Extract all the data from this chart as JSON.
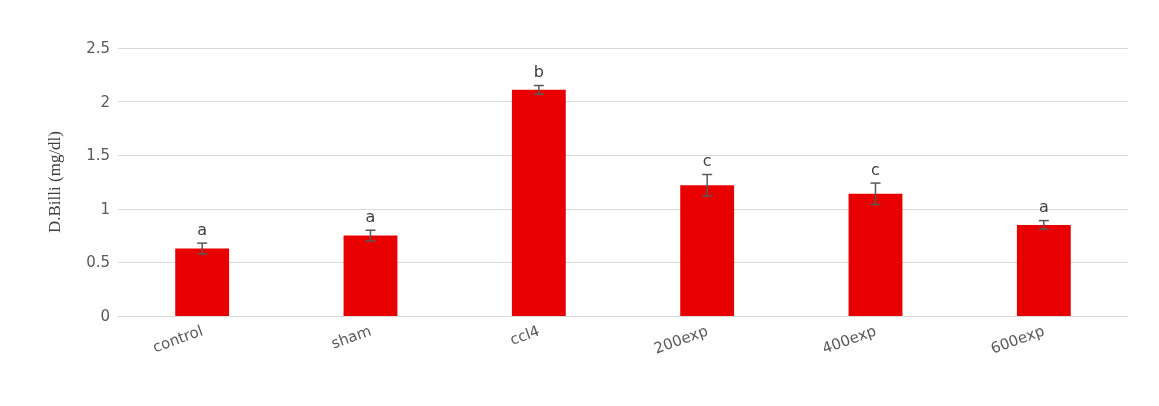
{
  "chart_data": {
    "type": "bar",
    "ylabel": "D.Billi (mg/dl)",
    "categories": [
      "control",
      "sham",
      "ccl4",
      "200exp",
      "400exp",
      "600exp"
    ],
    "values": [
      0.63,
      0.75,
      2.11,
      1.22,
      1.14,
      0.85
    ],
    "errors": [
      0.05,
      0.05,
      0.04,
      0.1,
      0.1,
      0.04
    ],
    "color": "#e80000",
    "ylim": [
      0,
      2.5
    ],
    "yticks": [
      0,
      0.5,
      1,
      1.5,
      2,
      2.5
    ],
    "grid": "y",
    "annotations": [
      {
        "text": "a",
        "x": "control",
        "y": 0.68
      },
      {
        "text": "a",
        "x": "sham",
        "y": 0.8
      },
      {
        "text": "b",
        "x": "ccl4",
        "y": 2.15
      },
      {
        "text": "c",
        "x": "200exp",
        "y": 1.32
      },
      {
        "text": "c",
        "x": "400exp",
        "y": 1.24
      },
      {
        "text": "a",
        "x": "600exp",
        "y": 0.89
      }
    ]
  }
}
